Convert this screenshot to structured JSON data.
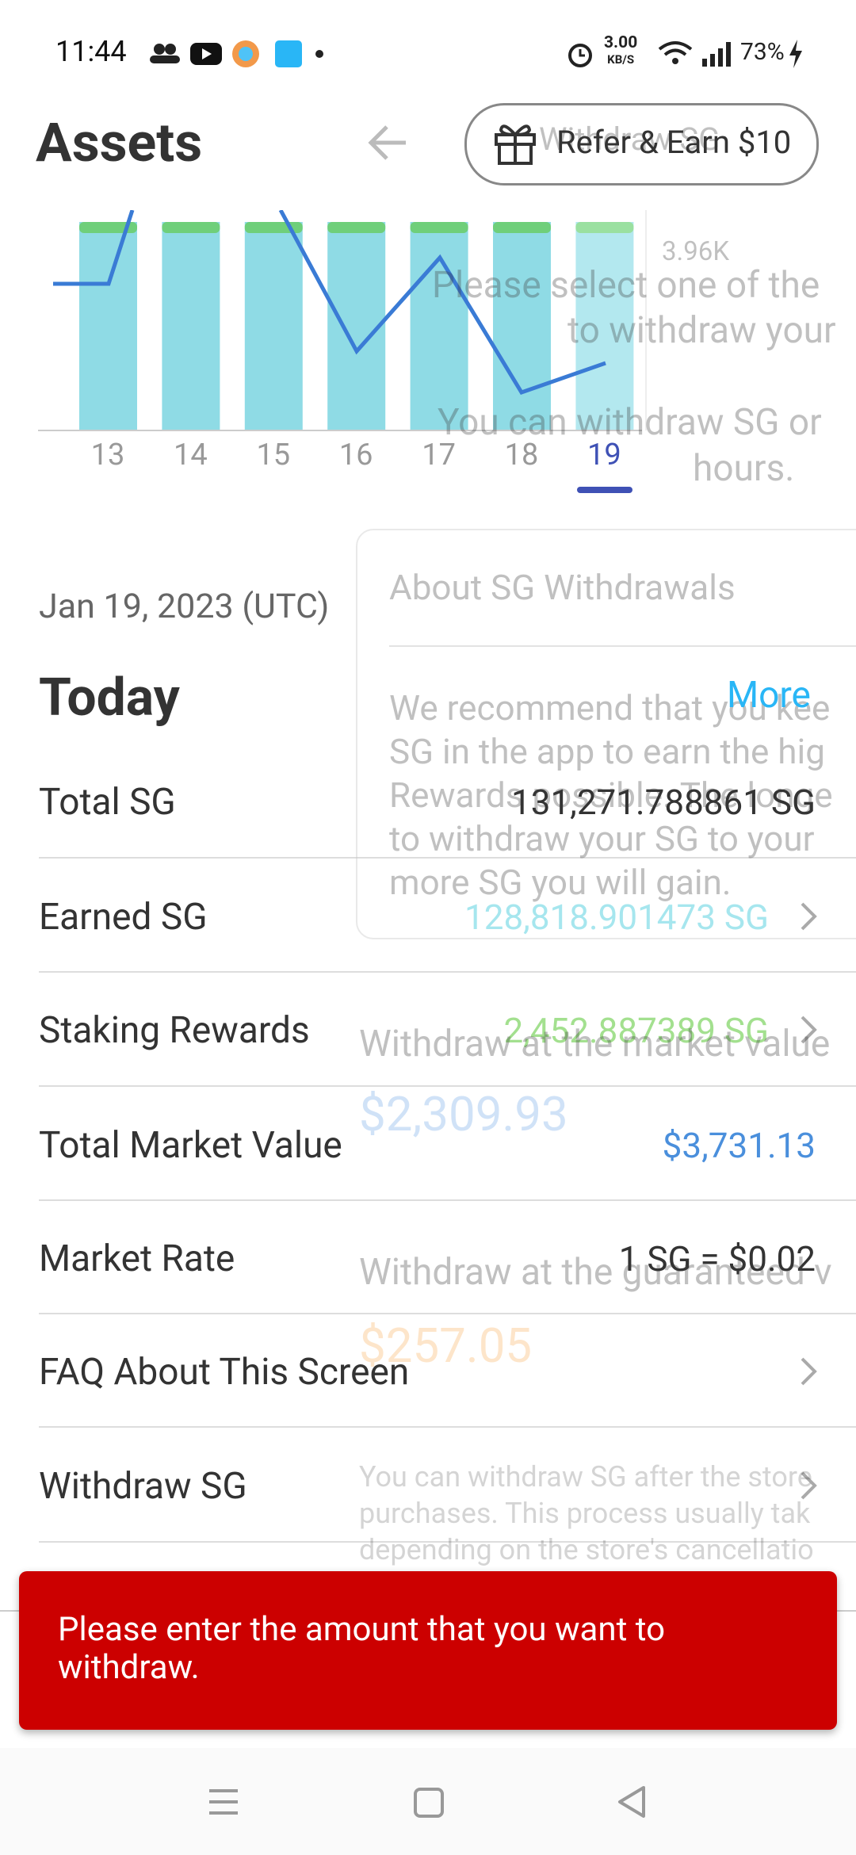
{
  "status": {
    "time": "11:44",
    "speed": "3.00",
    "speed_unit": "KB/S",
    "battery": "73%"
  },
  "header": {
    "title": "Assets",
    "refer": "Refer & Earn $10",
    "ghost_title": "Withdraw SG"
  },
  "chart": {
    "days": [
      "13",
      "14",
      "15",
      "16",
      "17",
      "18",
      "19"
    ],
    "axis_label": "3.96K"
  },
  "main": {
    "date": "Jan 19, 2023 (UTC)",
    "today": "Today",
    "more": "More",
    "rows": [
      {
        "label": "Total SG",
        "value": "131,271.788861 SG"
      },
      {
        "label": "Earned SG",
        "value": "128,818.901473 SG"
      },
      {
        "label": "Staking Rewards",
        "value": "2,452.887389 SG"
      },
      {
        "label": "Total Market Value",
        "value": "$3,731.13"
      },
      {
        "label": "Market Rate",
        "value": "1 SG = $0.02"
      },
      {
        "label": "FAQ About This Screen"
      },
      {
        "label": "Withdraw SG"
      }
    ]
  },
  "overlay": {
    "intro": [
      "Please select one of the",
      "to withdraw your",
      "You can withdraw SG or",
      "hours."
    ],
    "card_title": "About SG Withdrawals",
    "card_body": [
      "We recommend that you kee",
      "SG in the app to earn the hig",
      "Rewards possible. The longe",
      "to withdraw your SG to your",
      "more SG you will gain."
    ],
    "market_label": "Withdraw at the market value",
    "market_amount": "$2,309.93",
    "guaranteed_label": "Withdraw at the guaranteed v",
    "guaranteed_amount": "$257.05",
    "footnote": [
      "You can withdraw SG after the store",
      "purchases. This process usually tak",
      "depending on the store's cancellatio"
    ]
  },
  "toast": "Please enter the amount that you want to withdraw."
}
